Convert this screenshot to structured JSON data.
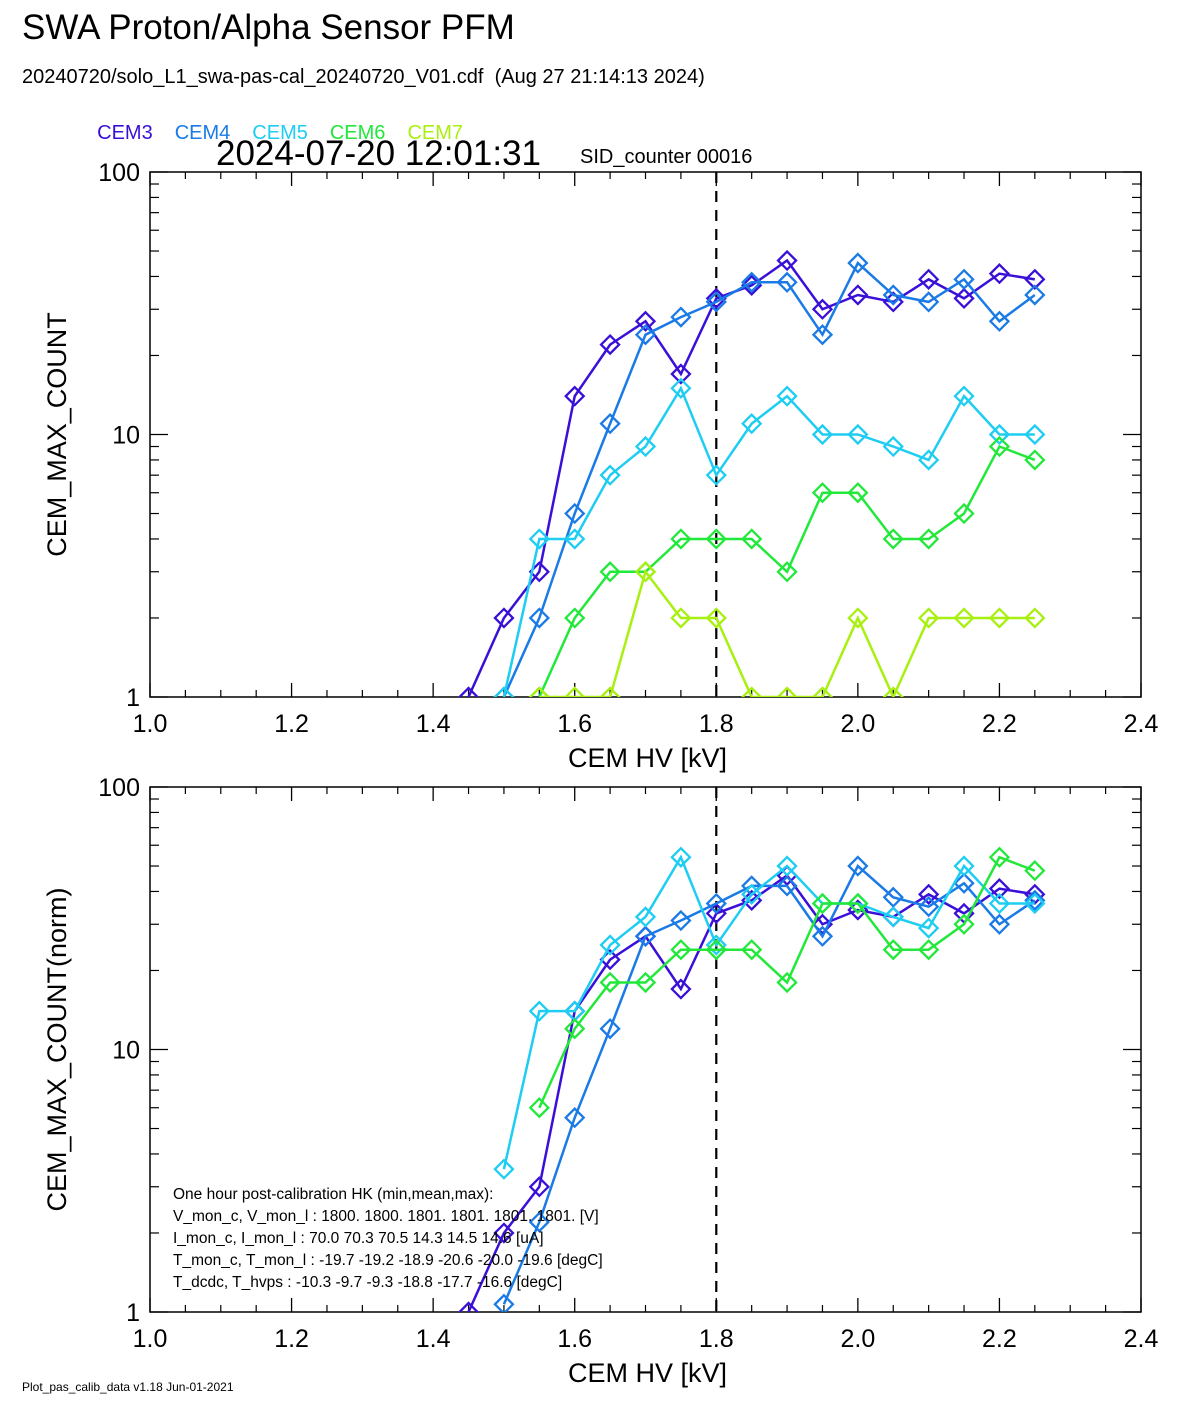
{
  "title": "SWA Proton/Alpha Sensor PFM",
  "subtitle": "20240720/solo_L1_swa-pas-cal_20240720_V01.cdf  (Aug 27 21:14:13 2024)",
  "timestamp": "2024-07-20 12:01:31",
  "sid_counter": "SID_counter 00016",
  "footer": "Plot_pas_calib_data v1.18 Jun-01-2021",
  "legend": [
    {
      "name": "CEM3",
      "color": "#3a10d8"
    },
    {
      "name": "CEM4",
      "color": "#1a7ae6"
    },
    {
      "name": "CEM5",
      "color": "#1ecdf2"
    },
    {
      "name": "CEM6",
      "color": "#22e83a"
    },
    {
      "name": "CEM7",
      "color": "#a8f010"
    }
  ],
  "hk_box": {
    "lines": [
      "One hour post-calibration HK (min,mean,max):",
      "V_mon_c, V_mon_l :   1800.  1800.  1801.   1801.  1801.  1801.  [V]",
      "I_mon_c,  I_mon_l :     70.0   70.3   70.5      14.3   14.5   14.6  [uA]",
      "T_mon_c, T_mon_l :   -19.7  -19.2  -18.9      -20.6  -20.0  -19.6  [degC]",
      "T_dcdc,    T_hvps :    -10.3   -9.7   -9.3       -18.8  -17.7  -16.6  [degC]"
    ]
  },
  "chart_data": [
    {
      "type": "line",
      "title": "",
      "xlabel": "CEM HV [kV]",
      "ylabel": "CEM_MAX_COUNT",
      "xlim": [
        1.0,
        2.4
      ],
      "ylim": [
        1,
        100
      ],
      "yscale": "log",
      "xticks": [
        "1.0",
        "1.2",
        "1.4",
        "1.6",
        "1.8",
        "2.0",
        "2.2",
        "2.4"
      ],
      "yticks": [
        "1",
        "10",
        "100"
      ],
      "vline": 1.8,
      "x": [
        1.45,
        1.5,
        1.55,
        1.6,
        1.65,
        1.7,
        1.75,
        1.8,
        1.85,
        1.9,
        1.95,
        2.0,
        2.05,
        2.1,
        2.15,
        2.2,
        2.25
      ],
      "series": [
        {
          "name": "CEM3",
          "color": "#3a10d8",
          "values": [
            1,
            2,
            3,
            14,
            22,
            27,
            17,
            33,
            37,
            46,
            30,
            34,
            32,
            39,
            33,
            41,
            39
          ]
        },
        {
          "name": "CEM4",
          "color": "#1a7ae6",
          "values": [
            null,
            1,
            2,
            5,
            11,
            24,
            28,
            32,
            38,
            38,
            24,
            45,
            34,
            32,
            39,
            27,
            34
          ]
        },
        {
          "name": "CEM5",
          "color": "#1ecdf2",
          "values": [
            null,
            1,
            4,
            4,
            7,
            9,
            15,
            7,
            11,
            14,
            10,
            10,
            9,
            8,
            14,
            10,
            10
          ]
        },
        {
          "name": "CEM6",
          "color": "#22e83a",
          "values": [
            null,
            null,
            1,
            2,
            3,
            3,
            4,
            4,
            4,
            3,
            6,
            6,
            4,
            4,
            5,
            9,
            8
          ]
        },
        {
          "name": "CEM7",
          "color": "#a8f010",
          "values": [
            null,
            null,
            1,
            1,
            1,
            3,
            2,
            2,
            1,
            1,
            1,
            2,
            1,
            2,
            2,
            2,
            2
          ]
        }
      ]
    },
    {
      "type": "line",
      "title": "",
      "xlabel": "CEM HV [kV]",
      "ylabel": "CEM_MAX_COUNT(norm)",
      "xlim": [
        1.0,
        2.4
      ],
      "ylim": [
        1,
        100
      ],
      "yscale": "log",
      "xticks": [
        "1.0",
        "1.2",
        "1.4",
        "1.6",
        "1.8",
        "2.0",
        "2.2",
        "2.4"
      ],
      "yticks": [
        "1",
        "10",
        "100"
      ],
      "vline": 1.8,
      "x": [
        1.45,
        1.5,
        1.55,
        1.6,
        1.65,
        1.7,
        1.75,
        1.8,
        1.85,
        1.9,
        1.95,
        2.0,
        2.05,
        2.1,
        2.15,
        2.2,
        2.25
      ],
      "series": [
        {
          "name": "CEM3",
          "color": "#3a10d8",
          "values": [
            1.0,
            2.0,
            3.0,
            14,
            22,
            27,
            17,
            33,
            37,
            46,
            30,
            34,
            32,
            39,
            33,
            41,
            39
          ]
        },
        {
          "name": "CEM4",
          "color": "#1a7ae6",
          "values": [
            null,
            1.07,
            2.2,
            5.5,
            12,
            27,
            31,
            36,
            42,
            42,
            27,
            50,
            38,
            35,
            43,
            30,
            37
          ]
        },
        {
          "name": "CEM5",
          "color": "#1ecdf2",
          "values": [
            null,
            3.5,
            14,
            14,
            25,
            32,
            54,
            25,
            39,
            50,
            36,
            36,
            32,
            29,
            50,
            36,
            36
          ]
        },
        {
          "name": "CEM6",
          "color": "#22e83a",
          "values": [
            null,
            null,
            6,
            12,
            18,
            18,
            24,
            24,
            24,
            18,
            36,
            36,
            24,
            24,
            30,
            54,
            48
          ]
        }
      ]
    }
  ]
}
